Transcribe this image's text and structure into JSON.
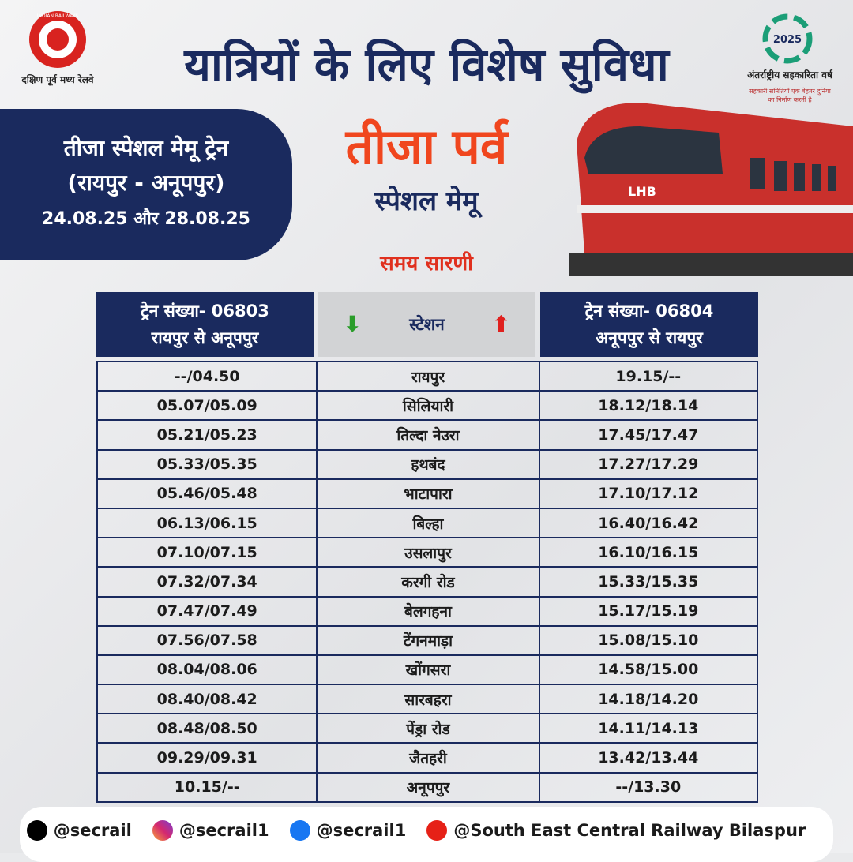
{
  "header": {
    "logo_ring": "INDIAN RAILWAYS",
    "logo_caption": "दक्षिण पूर्व मध्य रेलवे",
    "title": "यात्रियों के लिए विशेष सुविधा",
    "year_logo": "2025",
    "year_caption": "अंतर्राष्ट्रीय सहकारिता वर्ष",
    "year_tagline": "सहकारी समितियाँ एक बेहतर दुनिया का निर्माण करती है"
  },
  "info_box": {
    "line1": "तीजा स्पेशल मेमू ट्रेन",
    "line2": "(रायपुर - अनूपपुर)",
    "dates": "24.08.25 और 28.08.25"
  },
  "banner": {
    "festival": "तीजा पर्व",
    "subtitle": "स्पेशल मेमू",
    "schedule": "समय सारणी",
    "train_badge": "LHB"
  },
  "table": {
    "header": {
      "left_number": "ट्रेन संख्या- 06803",
      "left_route": "रायपुर से अनूपपुर",
      "station": "स्टेशन",
      "right_number": "ट्रेन संख्या- 06804",
      "right_route": "अनूपपुर से रायपुर"
    },
    "rows": [
      [
        "--/04.50",
        "रायपुर",
        "19.15/--"
      ],
      [
        "05.07/05.09",
        "सिलियारी",
        "18.12/18.14"
      ],
      [
        "05.21/05.23",
        "तिल्दा नेउरा",
        "17.45/17.47"
      ],
      [
        "05.33/05.35",
        "हथबंद",
        "17.27/17.29"
      ],
      [
        "05.46/05.48",
        "भाटापारा",
        "17.10/17.12"
      ],
      [
        "06.13/06.15",
        "बिल्हा",
        "16.40/16.42"
      ],
      [
        "07.10/07.15",
        "उसलापुर",
        "16.10/16.15"
      ],
      [
        "07.32/07.34",
        "करगी रोड",
        "15.33/15.35"
      ],
      [
        "07.47/07.49",
        "बेलगहना",
        "15.17/15.19"
      ],
      [
        "07.56/07.58",
        "टेंगनमाड़ा",
        "15.08/15.10"
      ],
      [
        "08.04/08.06",
        "खोंगसरा",
        "14.58/15.00"
      ],
      [
        "08.40/08.42",
        "सारबहरा",
        "14.18/14.20"
      ],
      [
        "08.48/08.50",
        "पेंड्रा रोड",
        "14.11/14.13"
      ],
      [
        "09.29/09.31",
        "जैतहरी",
        "13.42/13.44"
      ],
      [
        "10.15/--",
        "अनूपपुर",
        "--/13.30"
      ]
    ]
  },
  "footer": {
    "x": "@secrail",
    "instagram": "@secrail1",
    "facebook": "@secrail1",
    "youtube": "@South East Central Railway Bilaspur"
  }
}
